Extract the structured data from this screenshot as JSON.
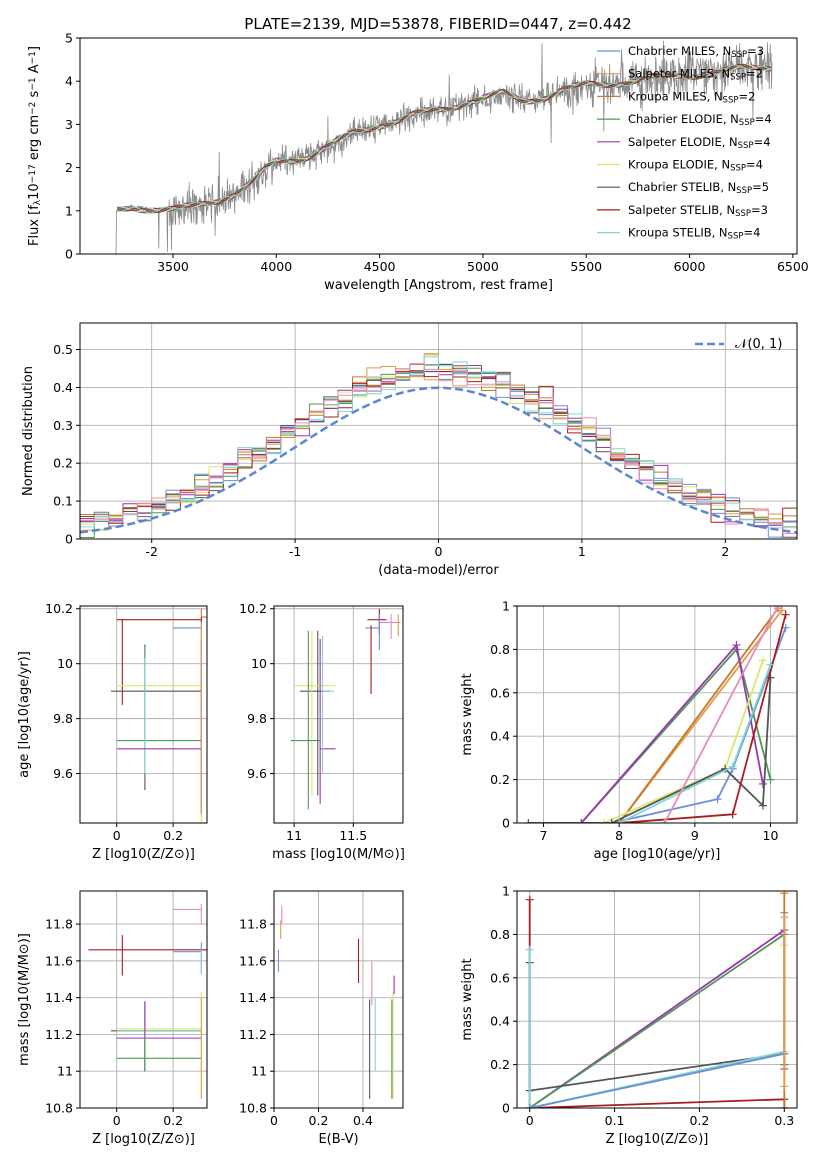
{
  "figure_title": "PLATE=2139, MJD=53878, FIBERID=0447, z=0.442",
  "colors": {
    "chabrier_miles": "#6a8fd8",
    "salpeter_miles": "#e59a4a",
    "kroupa_miles": "#c47a2c",
    "chabrier_elodie": "#4f9a55",
    "salpeter_elodie": "#9b36b0",
    "kroupa_elodie": "#dce66a",
    "chabrier_stelib": "#555555",
    "salpeter_stelib": "#a81e1e",
    "kroupa_stelib": "#7fd6d8",
    "pink": "#e88ac0",
    "data_gray": "#8a8a8a",
    "normal": "#5b87cf",
    "grid": "#b0b0b0"
  },
  "chart_data": [
    {
      "id": "spectrum",
      "type": "line",
      "title": "PLATE=2139, MJD=53878, FIBERID=0447, z=0.442",
      "xlabel": "wavelength [Angstrom, rest frame]",
      "ylabel": "Flux [f_λ 10^-17 erg cm^-2 s^-1 A^-1]",
      "xlim": [
        3050,
        6520
      ],
      "ylim": [
        0,
        5
      ],
      "xticks": [
        3500,
        4000,
        4500,
        5000,
        5500,
        6000,
        6500
      ],
      "yticks": [
        0,
        1,
        2,
        3,
        4,
        5
      ],
      "grid": false,
      "legend_position": "right",
      "legend": [
        {
          "label": "Chabrier MILES, N_SSP=3",
          "color": "#6a8fd8"
        },
        {
          "label": "Salpeter MILES, N_SSP=2",
          "color": "#e59a4a"
        },
        {
          "label": "Kroupa MILES, N_SSP=2",
          "color": "#c47a2c"
        },
        {
          "label": "Chabrier ELODIE, N_SSP=4",
          "color": "#4f9a55"
        },
        {
          "label": "Salpeter ELODIE, N_SSP=4",
          "color": "#9b36b0"
        },
        {
          "label": "Kroupa ELODIE, N_SSP=4",
          "color": "#dce66a"
        },
        {
          "label": "Chabrier STELIB, N_SSP=5",
          "color": "#555555"
        },
        {
          "label": "Salpeter STELIB, N_SSP=3",
          "color": "#a81e1e"
        },
        {
          "label": "Kroupa STELIB, N_SSP=4",
          "color": "#7fd6d8"
        }
      ],
      "continuum": [
        [
          3220,
          0.0
        ],
        [
          3225,
          1.0
        ],
        [
          3300,
          1.1
        ],
        [
          3400,
          1.05
        ],
        [
          3500,
          1.0
        ],
        [
          3600,
          1.1
        ],
        [
          3700,
          1.25
        ],
        [
          3800,
          1.4
        ],
        [
          3900,
          1.7
        ],
        [
          3950,
          1.95
        ],
        [
          4000,
          2.15
        ],
        [
          4100,
          2.2
        ],
        [
          4200,
          2.35
        ],
        [
          4300,
          2.6
        ],
        [
          4400,
          2.85
        ],
        [
          4500,
          3.0
        ],
        [
          4600,
          3.1
        ],
        [
          4700,
          3.25
        ],
        [
          4800,
          3.35
        ],
        [
          4900,
          3.5
        ],
        [
          5000,
          3.6
        ],
        [
          5100,
          3.7
        ],
        [
          5200,
          3.55
        ],
        [
          5300,
          3.65
        ],
        [
          5400,
          3.8
        ],
        [
          5500,
          3.9
        ],
        [
          5600,
          3.95
        ],
        [
          5700,
          4.0
        ],
        [
          5800,
          4.05
        ],
        [
          5900,
          4.1
        ],
        [
          6000,
          4.15
        ],
        [
          6100,
          4.2
        ],
        [
          6200,
          4.25
        ],
        [
          6300,
          4.3
        ],
        [
          6400,
          4.35
        ]
      ]
    },
    {
      "id": "residual-histogram",
      "type": "line",
      "xlabel": "(data-model)/error",
      "ylabel": "Normed distribution",
      "xlim": [
        -2.5,
        2.5
      ],
      "ylim": [
        0,
        0.57
      ],
      "xticks": [
        -2,
        -1,
        0,
        1,
        2
      ],
      "yticks": [
        0.0,
        0.1,
        0.2,
        0.3,
        0.4,
        0.5
      ],
      "grid": true,
      "legend_position": "top-right",
      "legend": [
        {
          "label": "𝒩(0, 1)",
          "color": "#5b87cf",
          "style": "dashed"
        }
      ],
      "bin_width": 0.1
    },
    {
      "id": "age-vs-Z",
      "type": "scatter",
      "xlabel": "Z [log10(Z/Z⊙)]",
      "ylabel": "age  [log10(age/yr)]",
      "xlim": [
        -0.13,
        0.32
      ],
      "ylim": [
        9.42,
        10.21
      ],
      "xticks": [
        0.0,
        0.2
      ],
      "yticks": [
        9.6,
        9.8,
        10.0,
        10.2
      ],
      "grid": true
    },
    {
      "id": "age-vs-mass",
      "type": "scatter",
      "xlabel": "mass [log10(M/M⊙)]",
      "xlim": [
        10.83,
        11.92
      ],
      "ylim": [
        9.42,
        10.21
      ],
      "xticks": [
        11.0,
        11.5
      ],
      "yticks": [
        9.6,
        9.8,
        10.0,
        10.2
      ],
      "grid": true
    },
    {
      "id": "weight-vs-age",
      "type": "line",
      "xlabel": "age  [log10(age/yr)]",
      "ylabel": "mass weight",
      "xlim": [
        6.65,
        10.35
      ],
      "ylim": [
        0,
        1
      ],
      "xticks": [
        7,
        8,
        9,
        10
      ],
      "yticks": [
        0.0,
        0.2,
        0.4,
        0.6,
        0.8,
        1.0
      ],
      "grid": true,
      "series": [
        {
          "color": "#6a8fd8",
          "points": [
            [
              7.9,
              0.0
            ],
            [
              9.3,
              0.11
            ],
            [
              9.5,
              0.25
            ],
            [
              10.2,
              0.9
            ]
          ]
        },
        {
          "color": "#e59a4a",
          "points": [
            [
              8.0,
              0.0
            ],
            [
              10.15,
              0.98
            ]
          ]
        },
        {
          "color": "#c47a2c",
          "points": [
            [
              8.0,
              0.0
            ],
            [
              10.1,
              0.99
            ]
          ]
        },
        {
          "color": "#4f9a55",
          "points": [
            [
              7.5,
              0.0
            ],
            [
              9.55,
              0.8
            ],
            [
              10.0,
              0.2
            ]
          ]
        },
        {
          "color": "#9b36b0",
          "points": [
            [
              7.5,
              0.0
            ],
            [
              9.55,
              0.82
            ],
            [
              9.9,
              0.18
            ]
          ]
        },
        {
          "color": "#dce66a",
          "points": [
            [
              6.8,
              0.0
            ],
            [
              7.8,
              0.0
            ],
            [
              9.4,
              0.25
            ],
            [
              9.9,
              0.75
            ]
          ]
        },
        {
          "color": "#555555",
          "points": [
            [
              6.8,
              0.0
            ],
            [
              7.9,
              0.0
            ],
            [
              9.4,
              0.25
            ],
            [
              9.9,
              0.08
            ],
            [
              10.0,
              0.67
            ]
          ]
        },
        {
          "color": "#a81e1e",
          "points": [
            [
              8.0,
              0.0
            ],
            [
              9.5,
              0.04
            ],
            [
              10.2,
              0.96
            ]
          ]
        },
        {
          "color": "#7fd6d8",
          "points": [
            [
              8.0,
              0.0
            ],
            [
              9.5,
              0.26
            ],
            [
              10.0,
              0.73
            ]
          ]
        },
        {
          "color": "#e88ac0",
          "points": [
            [
              8.6,
              0.0
            ],
            [
              10.1,
              1.0
            ]
          ]
        }
      ]
    },
    {
      "id": "mass-vs-Z",
      "type": "scatter",
      "xlabel": "Z [log10(Z/Z⊙)]",
      "ylabel": "mass [log10(M/M⊙)]",
      "xlim": [
        -0.13,
        0.32
      ],
      "ylim": [
        10.8,
        11.98
      ],
      "xticks": [
        0.0,
        0.2
      ],
      "yticks": [
        10.8,
        11.0,
        11.2,
        11.4,
        11.6,
        11.8
      ],
      "grid": true
    },
    {
      "id": "mass-vs-EBV",
      "type": "scatter",
      "xlabel": "E(B-V)",
      "xlim": [
        0.0,
        0.58
      ],
      "ylim": [
        10.8,
        11.98
      ],
      "xticks": [
        0.0,
        0.2,
        0.4
      ],
      "yticks": [
        10.8,
        11.0,
        11.2,
        11.4,
        11.6,
        11.8
      ],
      "grid": true,
      "points": [
        {
          "color": "#6a8fd8",
          "x": 0.02,
          "y": 11.6,
          "err": 0.06
        },
        {
          "color": "#e59a4a",
          "x": 0.03,
          "y": 11.77,
          "err": 0.05
        },
        {
          "color": "#e88ac0",
          "x": 0.035,
          "y": 11.85,
          "err": 0.05
        },
        {
          "color": "#a81e1e",
          "x": 0.38,
          "y": 11.6,
          "err": 0.12
        },
        {
          "color": "#e88ac0",
          "x": 0.44,
          "y": 11.48,
          "err": 0.12
        },
        {
          "color": "#555555",
          "x": 0.43,
          "y": 11.12,
          "err": 0.27
        },
        {
          "color": "#7fd6d8",
          "x": 0.455,
          "y": 11.2,
          "err": 0.2
        },
        {
          "color": "#4f9a55",
          "x": 0.53,
          "y": 11.12,
          "err": 0.27
        },
        {
          "color": "#dce66a",
          "x": 0.535,
          "y": 11.14,
          "err": 0.29
        },
        {
          "color": "#9b36b0",
          "x": 0.54,
          "y": 11.47,
          "err": 0.05
        }
      ]
    },
    {
      "id": "weight-vs-Z",
      "type": "line",
      "xlabel": "Z [log10(Z/Z⊙)]",
      "ylabel": "mass weight",
      "xlim": [
        -0.015,
        0.315
      ],
      "ylim": [
        0,
        1
      ],
      "xticks": [
        0.0,
        0.1,
        0.2,
        0.3
      ],
      "yticks": [
        0.0,
        0.2,
        0.4,
        0.6,
        0.8,
        1.0
      ],
      "grid": true,
      "series": [
        {
          "color": "#a81e1e",
          "points": [
            [
              0.0,
              0.96
            ],
            [
              0.0,
              0.0
            ],
            [
              0.3,
              0.04
            ],
            [
              0.3,
              0.0
            ]
          ]
        },
        {
          "color": "#9b36b0",
          "points": [
            [
              0.0,
              0.0
            ],
            [
              0.3,
              0.82
            ],
            [
              0.3,
              0.18
            ]
          ]
        },
        {
          "color": "#4f9a55",
          "points": [
            [
              0.0,
              0.0
            ],
            [
              0.3,
              0.8
            ],
            [
              0.3,
              0.2
            ]
          ]
        },
        {
          "color": "#555555",
          "points": [
            [
              0.0,
              0.67
            ],
            [
              0.0,
              0.08
            ],
            [
              0.3,
              0.25
            ]
          ]
        },
        {
          "color": "#dce66a",
          "points": [
            [
              0.0,
              0.0
            ],
            [
              0.3,
              0.25
            ],
            [
              0.3,
              0.75
            ]
          ]
        },
        {
          "color": "#7fd6d8",
          "points": [
            [
              0.0,
              0.73
            ],
            [
              0.0,
              0.0
            ],
            [
              0.3,
              0.26
            ]
          ]
        },
        {
          "color": "#6a8fd8",
          "points": [
            [
              0.0,
              0.0
            ],
            [
              0.3,
              0.25
            ],
            [
              0.3,
              0.9
            ]
          ]
        },
        {
          "color": "#c47a2c",
          "points": [
            [
              0.3,
              0.0
            ],
            [
              0.3,
              0.99
            ]
          ]
        },
        {
          "color": "#e59a4a",
          "points": [
            [
              0.3,
              0.1
            ],
            [
              0.3,
              0.88
            ]
          ]
        }
      ]
    }
  ]
}
